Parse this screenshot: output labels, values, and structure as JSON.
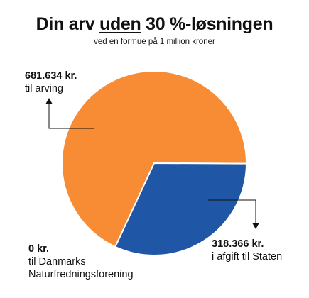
{
  "title": {
    "pre": "Din arv ",
    "underlined": "uden",
    "post": " 30 %-løsningen"
  },
  "subtitle": "ved en formue på 1 million kroner",
  "chart_data": {
    "type": "pie",
    "title": "Din arv uden 30 %-løsningen",
    "subtitle": "ved en formue på 1 million kroner",
    "slices": [
      {
        "amount": "681.634 kr.",
        "desc": [
          "til arving"
        ],
        "value": 681634,
        "color": "#f78c34"
      },
      {
        "amount": "318.366 kr.",
        "desc": [
          "i afgift til Staten"
        ],
        "value": 318366,
        "color": "#1f56a6"
      },
      {
        "amount": "0 kr.",
        "desc": [
          "til Danmarks",
          "Naturfredningsforening"
        ],
        "value": 0,
        "color": "#2e7d4f"
      }
    ]
  }
}
